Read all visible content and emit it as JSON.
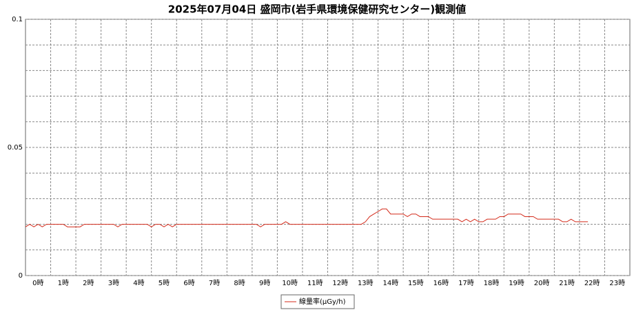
{
  "chart_data": {
    "type": "line",
    "title": "2025年07月04日 盛岡市(岩手県環境保健研究センター)観測値",
    "categories": [
      "0時",
      "1時",
      "2時",
      "3時",
      "4時",
      "5時",
      "6時",
      "7時",
      "8時",
      "9時",
      "10時",
      "11時",
      "12時",
      "13時",
      "14時",
      "15時",
      "16時",
      "17時",
      "18時",
      "19時",
      "20時",
      "21時",
      "22時",
      "23時"
    ],
    "x": [
      0,
      10,
      20,
      30,
      40,
      50,
      60,
      70,
      80,
      90,
      100,
      110,
      120,
      130,
      140,
      150,
      160,
      170,
      180,
      190,
      200,
      210,
      220,
      230,
      240,
      250,
      260,
      270,
      280,
      290,
      300,
      310,
      320,
      330,
      340,
      350,
      360,
      370,
      380,
      390,
      400,
      410,
      420,
      430,
      440,
      450,
      460,
      470,
      480,
      490,
      500,
      510,
      520,
      530,
      540,
      550,
      560,
      570,
      580,
      590,
      600,
      610,
      620,
      630,
      640,
      650,
      660,
      670,
      680,
      690,
      700,
      710,
      720,
      730,
      740,
      750,
      760,
      770,
      780,
      790,
      800,
      810,
      820,
      830,
      840,
      850,
      860,
      870,
      880,
      890,
      900,
      910,
      920,
      930,
      940,
      950,
      960,
      970,
      980,
      990,
      1000,
      1010,
      1020,
      1030,
      1040,
      1050,
      1060,
      1070,
      1080,
      1090,
      1100,
      1110,
      1120,
      1130,
      1140,
      1150,
      1160,
      1170,
      1180,
      1190,
      1200,
      1210,
      1220,
      1230,
      1240,
      1250,
      1260,
      1270,
      1280,
      1290,
      1300,
      1310,
      1320,
      1330,
      1340
    ],
    "xlim": [
      0,
      1440
    ],
    "series": [
      {
        "name": "線量率(μGy/h)",
        "color": "#d42a1a",
        "values": [
          0.019,
          0.02,
          0.019,
          0.02,
          0.019,
          0.02,
          0.02,
          0.02,
          0.02,
          0.02,
          0.019,
          0.019,
          0.019,
          0.019,
          0.02,
          0.02,
          0.02,
          0.02,
          0.02,
          0.02,
          0.02,
          0.02,
          0.019,
          0.02,
          0.02,
          0.02,
          0.02,
          0.02,
          0.02,
          0.02,
          0.019,
          0.02,
          0.02,
          0.019,
          0.02,
          0.019,
          0.02,
          0.02,
          0.02,
          0.02,
          0.02,
          0.02,
          0.02,
          0.02,
          0.02,
          0.02,
          0.02,
          0.02,
          0.02,
          0.02,
          0.02,
          0.02,
          0.02,
          0.02,
          0.02,
          0.02,
          0.019,
          0.02,
          0.02,
          0.02,
          0.02,
          0.02,
          0.021,
          0.02,
          0.02,
          0.02,
          0.02,
          0.02,
          0.02,
          0.02,
          0.02,
          0.02,
          0.02,
          0.02,
          0.02,
          0.02,
          0.02,
          0.02,
          0.02,
          0.02,
          0.02,
          0.021,
          0.023,
          0.024,
          0.025,
          0.026,
          0.026,
          0.024,
          0.024,
          0.024,
          0.024,
          0.023,
          0.024,
          0.024,
          0.023,
          0.023,
          0.023,
          0.022,
          0.022,
          0.022,
          0.022,
          0.022,
          0.022,
          0.022,
          0.021,
          0.022,
          0.021,
          0.022,
          0.021,
          0.021,
          0.022,
          0.022,
          0.022,
          0.023,
          0.023,
          0.024,
          0.024,
          0.024,
          0.024,
          0.023,
          0.023,
          0.023,
          0.022,
          0.022,
          0.022,
          0.022,
          0.022,
          0.022,
          0.021,
          0.021,
          0.022,
          0.021,
          0.021,
          0.021,
          0.021
        ]
      }
    ],
    "ylim": [
      0,
      0.1
    ],
    "yticks": [
      0,
      0.05,
      0.1
    ],
    "y_minor_ticks": [
      0.01,
      0.02,
      0.03,
      0.04,
      0.06,
      0.07,
      0.08,
      0.09
    ],
    "grid": true,
    "legend": "bottom"
  }
}
